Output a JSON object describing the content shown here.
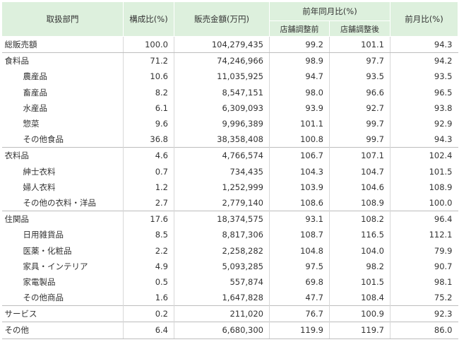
{
  "headers": {
    "category": "取扱部門",
    "share": "構成比(%)",
    "sales": "販売金額(万円)",
    "yoy": "前年同月比(%)",
    "yoy_before": "店舗調整前",
    "yoy_after": "店舗調整後",
    "mom": "前月比(%)"
  },
  "rows": [
    {
      "name": "総販売額",
      "share": "100.0",
      "sales": "104,279,435",
      "yoy_before": "99.2",
      "yoy_after": "101.1",
      "mom": "94.3"
    },
    {
      "name": "食料品",
      "share": "71.2",
      "sales": "74,246,966",
      "yoy_before": "98.9",
      "yoy_after": "97.7",
      "mom": "94.2"
    },
    {
      "name": "農産品",
      "share": "10.6",
      "sales": "11,035,925",
      "yoy_before": "94.7",
      "yoy_after": "93.5",
      "mom": "93.5"
    },
    {
      "name": "畜産品",
      "share": "8.2",
      "sales": "8,547,151",
      "yoy_before": "98.0",
      "yoy_after": "96.6",
      "mom": "96.5"
    },
    {
      "name": "水産品",
      "share": "6.1",
      "sales": "6,309,093",
      "yoy_before": "93.9",
      "yoy_after": "92.7",
      "mom": "93.8"
    },
    {
      "name": "惣菜",
      "share": "9.6",
      "sales": "9,996,389",
      "yoy_before": "101.1",
      "yoy_after": "99.7",
      "mom": "92.9"
    },
    {
      "name": "その他食品",
      "share": "36.8",
      "sales": "38,358,408",
      "yoy_before": "100.8",
      "yoy_after": "99.7",
      "mom": "94.3"
    },
    {
      "name": "衣料品",
      "share": "4.6",
      "sales": "4,766,574",
      "yoy_before": "106.7",
      "yoy_after": "107.1",
      "mom": "102.4"
    },
    {
      "name": "紳士衣料",
      "share": "0.7",
      "sales": "734,435",
      "yoy_before": "104.3",
      "yoy_after": "104.7",
      "mom": "101.5"
    },
    {
      "name": "婦人衣料",
      "share": "1.2",
      "sales": "1,252,999",
      "yoy_before": "103.9",
      "yoy_after": "104.6",
      "mom": "108.9"
    },
    {
      "name": "その他の衣料・洋品",
      "share": "2.7",
      "sales": "2,779,140",
      "yoy_before": "108.6",
      "yoy_after": "108.9",
      "mom": "100.0"
    },
    {
      "name": "住関品",
      "share": "17.6",
      "sales": "18,374,575",
      "yoy_before": "93.1",
      "yoy_after": "108.2",
      "mom": "96.4"
    },
    {
      "name": "日用雑貨品",
      "share": "8.5",
      "sales": "8,817,306",
      "yoy_before": "108.7",
      "yoy_after": "116.5",
      "mom": "112.1"
    },
    {
      "name": "医薬・化粧品",
      "share": "2.2",
      "sales": "2,258,282",
      "yoy_before": "104.8",
      "yoy_after": "104.0",
      "mom": "79.9"
    },
    {
      "name": "家具・インテリア",
      "share": "4.9",
      "sales": "5,093,285",
      "yoy_before": "97.5",
      "yoy_after": "98.2",
      "mom": "90.7"
    },
    {
      "name": "家電製品",
      "share": "0.5",
      "sales": "557,874",
      "yoy_before": "69.8",
      "yoy_after": "101.5",
      "mom": "98.1"
    },
    {
      "name": "その他商品",
      "share": "1.6",
      "sales": "1,647,828",
      "yoy_before": "47.7",
      "yoy_after": "108.4",
      "mom": "75.2"
    },
    {
      "name": "サービス",
      "share": "0.2",
      "sales": "211,020",
      "yoy_before": "76.7",
      "yoy_after": "100.9",
      "mom": "92.3"
    },
    {
      "name": "その他",
      "share": "6.4",
      "sales": "6,680,300",
      "yoy_before": "119.9",
      "yoy_after": "119.7",
      "mom": "86.0"
    }
  ]
}
